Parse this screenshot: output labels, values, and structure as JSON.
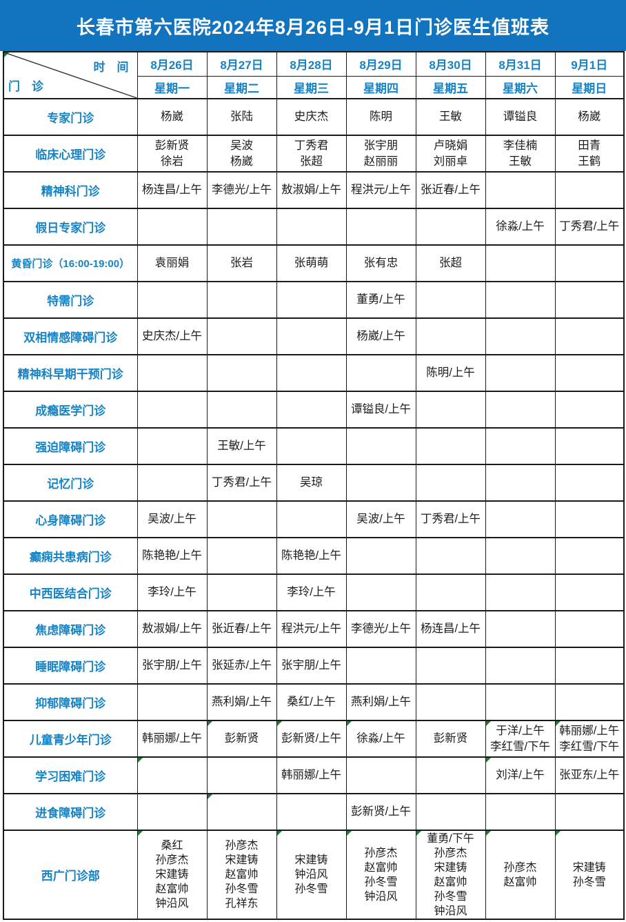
{
  "title": "长春市第六医院2024年8月26日-9月1日门诊医生值班表",
  "corner": {
    "top_label": "时　间",
    "bottom_label": "门　诊"
  },
  "columns": [
    {
      "date": "8月26日",
      "weekday": "星期一"
    },
    {
      "date": "8月27日",
      "weekday": "星期二"
    },
    {
      "date": "8月28日",
      "weekday": "星期三"
    },
    {
      "date": "8月29日",
      "weekday": "星期四"
    },
    {
      "date": "8月30日",
      "weekday": "星期五"
    },
    {
      "date": "8月31日",
      "weekday": "星期六"
    },
    {
      "date": "9月1日",
      "weekday": "星期日"
    }
  ],
  "rows": [
    {
      "label": "专家门诊",
      "cells": [
        [
          "杨崴"
        ],
        [
          "张陆"
        ],
        [
          "史庆杰"
        ],
        [
          "陈明"
        ],
        [
          "王敏"
        ],
        [
          "谭镒良"
        ],
        [
          "杨崴"
        ]
      ],
      "notes": []
    },
    {
      "label": "临床心理门诊",
      "cells": [
        [
          "彭新贤",
          "徐岩"
        ],
        [
          "吴波",
          "杨崴"
        ],
        [
          "丁秀君",
          "张超"
        ],
        [
          "张宇朋",
          "赵丽丽"
        ],
        [
          "卢晓娟",
          "刘丽卓"
        ],
        [
          "李佳楠",
          "王敏"
        ],
        [
          "田青",
          "王鹤"
        ]
      ],
      "notes": []
    },
    {
      "label": "精神科门诊",
      "cells": [
        [
          "杨连昌/上午"
        ],
        [
          "李德光/上午"
        ],
        [
          "敖淑娟/上午"
        ],
        [
          "程洪元/上午"
        ],
        [
          "张近春/上午"
        ],
        [],
        []
      ],
      "notes": []
    },
    {
      "label": "假日专家门诊",
      "cells": [
        [],
        [],
        [],
        [],
        [],
        [
          "徐淼/上午"
        ],
        [
          "丁秀君/上午"
        ]
      ],
      "notes": []
    },
    {
      "label": "黄昏门诊（16:00-19:00）",
      "cells": [
        [
          "袁丽娟"
        ],
        [
          "张岩"
        ],
        [
          "张萌萌"
        ],
        [
          "张有忠"
        ],
        [
          "张超"
        ],
        [],
        []
      ],
      "notes": []
    },
    {
      "label": "特需门诊",
      "cells": [
        [],
        [],
        [],
        [
          "董勇/上午"
        ],
        [],
        [],
        []
      ],
      "notes": []
    },
    {
      "label": "双相情感障碍门诊",
      "cells": [
        [
          "史庆杰/上午"
        ],
        [],
        [],
        [
          "杨崴/上午"
        ],
        [],
        [],
        []
      ],
      "notes": []
    },
    {
      "label": "精神科早期干预门诊",
      "cells": [
        [],
        [],
        [],
        [],
        [
          "陈明/上午"
        ],
        [],
        []
      ],
      "notes": []
    },
    {
      "label": "成瘾医学门诊",
      "cells": [
        [],
        [],
        [],
        [
          "谭镒良/上午"
        ],
        [],
        [],
        []
      ],
      "notes": []
    },
    {
      "label": "强迫障碍门诊",
      "cells": [
        [],
        [
          "王敏/上午"
        ],
        [],
        [],
        [],
        [],
        []
      ],
      "notes": []
    },
    {
      "label": "记忆门诊",
      "cells": [
        [],
        [
          "丁秀君/上午"
        ],
        [
          "吴琼"
        ],
        [],
        [],
        [],
        []
      ],
      "notes": []
    },
    {
      "label": "心身障碍门诊",
      "cells": [
        [
          "吴波/上午"
        ],
        [],
        [],
        [
          "吴波/上午"
        ],
        [
          "丁秀君/上午"
        ],
        [],
        []
      ],
      "notes": []
    },
    {
      "label": "癫痫共患病门诊",
      "cells": [
        [
          "陈艳艳/上午"
        ],
        [],
        [
          "陈艳艳/上午"
        ],
        [],
        [],
        [],
        []
      ],
      "notes": []
    },
    {
      "label": "中西医结合门诊",
      "cells": [
        [
          "李玲/上午"
        ],
        [],
        [
          "李玲/上午"
        ],
        [],
        [],
        [],
        []
      ],
      "notes": []
    },
    {
      "label": "焦虑障碍门诊",
      "cells": [
        [
          "敖淑娟/上午"
        ],
        [
          "张近春/上午"
        ],
        [
          "程洪元/上午"
        ],
        [
          "李德光/上午"
        ],
        [
          "杨连昌/上午"
        ],
        [],
        []
      ],
      "notes": []
    },
    {
      "label": "睡眠障碍门诊",
      "cells": [
        [
          "张宇朋/上午"
        ],
        [
          "张延赤/上午"
        ],
        [
          "张宇朋/上午"
        ],
        [],
        [],
        [],
        []
      ],
      "notes": []
    },
    {
      "label": "抑郁障碍门诊",
      "cells": [
        [],
        [
          "燕利娟/上午"
        ],
        [
          "桑红/上午"
        ],
        [
          "燕利娟/上午"
        ],
        [],
        [],
        []
      ],
      "notes": []
    },
    {
      "label": "儿童青少年门诊",
      "cells": [
        [
          "韩丽娜/上午"
        ],
        [
          "彭新贤"
        ],
        [
          "彭新贤/上午"
        ],
        [
          "徐淼/上午"
        ],
        [
          "彭新贤"
        ],
        [
          "于洋/上午",
          "李红雪/下午"
        ],
        [
          "韩丽娜/上午",
          "李红雪/下午"
        ]
      ],
      "notes": [
        1,
        2,
        3,
        5,
        6
      ]
    },
    {
      "label": "学习困难门诊",
      "cells": [
        [],
        [],
        [
          "韩丽娜/上午"
        ],
        [],
        [],
        [
          "刘洋/上午"
        ],
        [
          "张亚东/上午"
        ]
      ],
      "notes": [
        0,
        5
      ]
    },
    {
      "label": "进食障碍门诊",
      "cells": [
        [],
        [],
        [],
        [
          "彭新贤/上午"
        ],
        [],
        [],
        []
      ],
      "notes": [
        1
      ]
    },
    {
      "label": "西广门诊部",
      "tall": true,
      "cells": [
        [
          "桑红",
          "孙彦杰",
          "宋建铸",
          "赵富帅",
          "钟沿风"
        ],
        [
          "孙彦杰",
          "宋建铸",
          "赵富帅",
          "孙冬雪",
          "孔祥东"
        ],
        [
          "宋建铸",
          "钟沿风",
          "孙冬雪"
        ],
        [
          "孙彦杰",
          "赵富帅",
          "孙冬雪",
          "钟沿风"
        ],
        [
          "董勇/下午",
          "孙彦杰",
          "宋建铸",
          "赵富帅",
          "孙冬雪",
          "钟沿风"
        ],
        [
          "孙彦杰",
          "赵富帅"
        ],
        [
          "宋建铸",
          "孙冬雪"
        ]
      ],
      "notes": [
        0,
        2,
        3,
        4,
        5,
        6
      ]
    }
  ],
  "colors": {
    "title_bg": "#1273BE",
    "title_text": "#FFFFFF",
    "accent_text": "#1583C5",
    "body_text": "#1C1C1C",
    "grid_line": "#1A1A1A",
    "note_marker": "#217A38"
  }
}
